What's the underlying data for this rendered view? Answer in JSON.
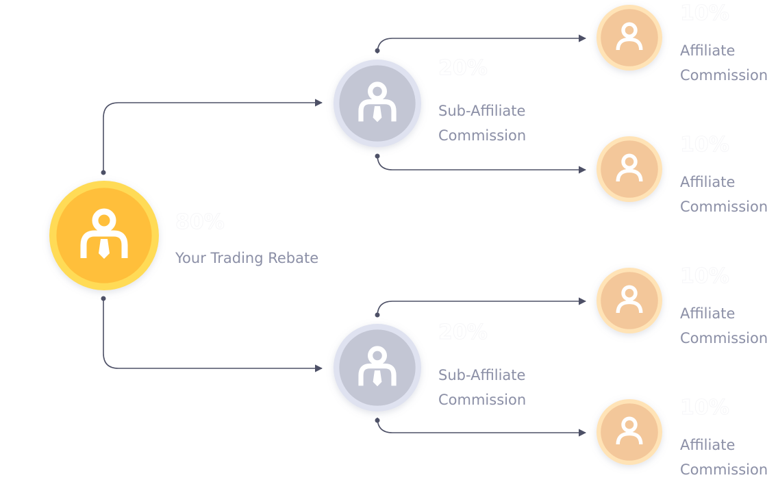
{
  "colors": {
    "root": "#ffbf3b",
    "sub": "#c3c6d4",
    "affiliate": "#f3c79a",
    "connector": "#4d5066",
    "label": "#8b8fa6"
  },
  "root": {
    "icon": "user-tie-icon",
    "percent": "80%",
    "label": "Your Trading Rebate"
  },
  "subs": [
    {
      "icon": "user-tie-icon",
      "percent": "20%",
      "label_line1": "Sub-Affiliate",
      "label_line2": "Commission"
    },
    {
      "icon": "user-tie-icon",
      "percent": "20%",
      "label_line1": "Sub-Affiliate",
      "label_line2": "Commission"
    }
  ],
  "affiliates": [
    {
      "icon": "user-icon",
      "percent": "10%",
      "label_line1": "Affiliate",
      "label_line2": "Commission"
    },
    {
      "icon": "user-icon",
      "percent": "10%",
      "label_line1": "Affiliate",
      "label_line2": "Commission"
    },
    {
      "icon": "user-icon",
      "percent": "10%",
      "label_line1": "Affiliate",
      "label_line2": "Commission"
    },
    {
      "icon": "user-icon",
      "percent": "10%",
      "label_line1": "Affiliate",
      "label_line2": "Commission"
    }
  ]
}
